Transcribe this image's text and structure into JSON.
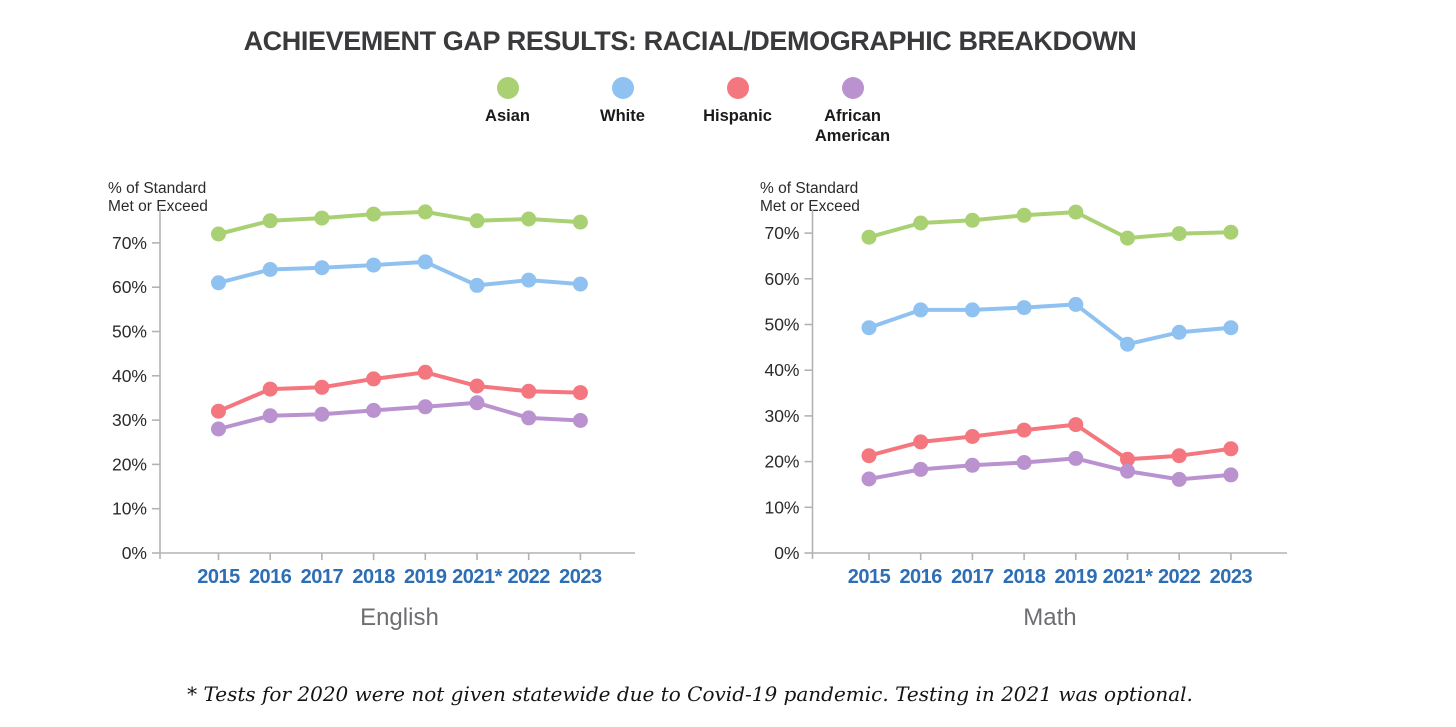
{
  "page": {
    "title": "ACHIEVEMENT GAP RESULTS: RACIAL/DEMOGRAPHIC BREAKDOWN",
    "footnote": "* Tests for 2020 were not given statewide due to Covid-19 pandemic. Testing in 2021 was optional.",
    "background_color": "#ffffff"
  },
  "legend": {
    "position": "top-center",
    "items": [
      {
        "label": "Asian",
        "color": "#a9d173"
      },
      {
        "label": "White",
        "color": "#8fc2f0"
      },
      {
        "label": "Hispanic",
        "color": "#f4767e"
      },
      {
        "label": "African American",
        "color": "#bb92d0"
      }
    ]
  },
  "styles": {
    "axis_color": "#b3b3b3",
    "year_label_color": "#2e6eb5",
    "chart_title_color": "#6d6e71",
    "title_color": "#3a3a3c"
  },
  "chart_data": [
    {
      "type": "line",
      "title": "English",
      "xlabel": "",
      "ylabel": "% of Standard Met or Exceed",
      "ylabel_lines": [
        "% of Standard",
        "Met or Exceed"
      ],
      "categories": [
        "2015",
        "2016",
        "2017",
        "2018",
        "2019",
        "2021*",
        "2022",
        "2023"
      ],
      "yticks": [
        "0%",
        "10%",
        "20%",
        "30%",
        "40%",
        "50%",
        "60%",
        "70%"
      ],
      "ylim": [
        0,
        77
      ],
      "grid": false,
      "legend": "shared-top",
      "series": [
        {
          "name": "Asian",
          "color": "#a9d173",
          "values": [
            72,
            75,
            75.6,
            76.5,
            77,
            75,
            75.4,
            74.7
          ]
        },
        {
          "name": "White",
          "color": "#8fc2f0",
          "values": [
            61,
            64,
            64.4,
            65,
            65.7,
            60.4,
            61.6,
            60.7
          ]
        },
        {
          "name": "Hispanic",
          "color": "#f4767e",
          "values": [
            32,
            37,
            37.4,
            39.3,
            40.8,
            37.7,
            36.5,
            36.2
          ]
        },
        {
          "name": "African American",
          "color": "#bb92d0",
          "values": [
            28,
            31,
            31.3,
            32.2,
            33,
            33.9,
            30.5,
            29.9
          ]
        }
      ]
    },
    {
      "type": "line",
      "title": "Math",
      "xlabel": "",
      "ylabel": "% of Standard Met or Exceed",
      "ylabel_lines": [
        "% of Standard",
        "Met or Exceed"
      ],
      "categories": [
        "2015",
        "2016",
        "2017",
        "2018",
        "2019",
        "2021*",
        "2022",
        "2023"
      ],
      "yticks": [
        "0%",
        "10%",
        "20%",
        "30%",
        "40%",
        "50%",
        "60%",
        "70%"
      ],
      "ylim": [
        0,
        77
      ],
      "grid": false,
      "legend": "shared-top",
      "series": [
        {
          "name": "Asian",
          "color": "#a9d173",
          "values": [
            69.1,
            72.2,
            72.8,
            73.9,
            74.6,
            68.9,
            69.9,
            70.2
          ]
        },
        {
          "name": "White",
          "color": "#8fc2f0",
          "values": [
            49.3,
            53.2,
            53.2,
            53.7,
            54.4,
            45.7,
            48.3,
            49.3
          ]
        },
        {
          "name": "Hispanic",
          "color": "#f4767e",
          "values": [
            21.3,
            24.3,
            25.5,
            26.9,
            28.1,
            20.5,
            21.3,
            22.8
          ]
        },
        {
          "name": "African American",
          "color": "#bb92d0",
          "values": [
            16.2,
            18.3,
            19.2,
            19.8,
            20.7,
            17.9,
            16.1,
            17.1
          ]
        }
      ]
    }
  ]
}
